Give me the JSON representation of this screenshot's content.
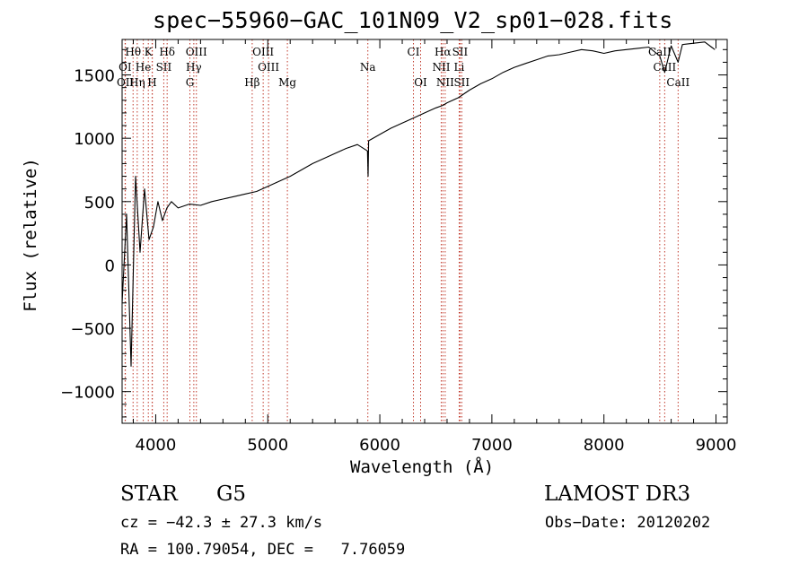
{
  "chart_data": {
    "type": "line",
    "title": "spec−55960−GAC_101N09_V2_sp01−028.fits",
    "xlabel": "Wavelength (Å)",
    "ylabel": "Flux (relative)",
    "xlim": [
      3700,
      9100
    ],
    "ylim": [
      -1250,
      1780
    ],
    "xticks": [
      4000,
      5000,
      6000,
      7000,
      8000,
      9000
    ],
    "xtick_labels": [
      "4000",
      "5000",
      "6000",
      "7000",
      "8000",
      "9000"
    ],
    "yticks": [
      -1000,
      -500,
      0,
      500,
      1000,
      1500
    ],
    "ytick_labels": [
      "−1000",
      "−500",
      "0",
      "500",
      "1000",
      "1500"
    ],
    "grid": false,
    "series": [
      {
        "name": "flux",
        "x": [
          3700,
          3740,
          3780,
          3820,
          3860,
          3900,
          3940,
          3980,
          4020,
          4060,
          4100,
          4140,
          4200,
          4300,
          4400,
          4500,
          4600,
          4700,
          4800,
          4900,
          5000,
          5100,
          5200,
          5300,
          5400,
          5500,
          5600,
          5700,
          5800,
          5890,
          5895,
          5900,
          6000,
          6100,
          6200,
          6300,
          6400,
          6500,
          6563,
          6600,
          6700,
          6800,
          6900,
          7000,
          7100,
          7200,
          7300,
          7400,
          7500,
          7600,
          7700,
          7800,
          7900,
          8000,
          8100,
          8200,
          8300,
          8400,
          8498,
          8542,
          8600,
          8662,
          8700,
          8800,
          8900,
          8960,
          8990
        ],
        "y": [
          -300,
          400,
          -800,
          700,
          100,
          600,
          200,
          300,
          500,
          350,
          450,
          500,
          450,
          480,
          470,
          500,
          520,
          540,
          560,
          580,
          620,
          660,
          700,
          750,
          800,
          840,
          880,
          920,
          950,
          900,
          700,
          980,
          1030,
          1080,
          1120,
          1160,
          1200,
          1240,
          1260,
          1280,
          1320,
          1380,
          1430,
          1470,
          1520,
          1560,
          1590,
          1620,
          1650,
          1660,
          1680,
          1700,
          1690,
          1670,
          1690,
          1700,
          1710,
          1720,
          1650,
          1520,
          1730,
          1600,
          1740,
          1750,
          1760,
          1720,
          1700
        ]
      }
    ],
    "line_annotations": [
      {
        "label": "Hθ",
        "wavelength": 3798,
        "row": 1
      },
      {
        "label": "K",
        "wavelength": 3934,
        "row": 1
      },
      {
        "label": "Hδ",
        "wavelength": 4102,
        "row": 1
      },
      {
        "label": "OIII",
        "wavelength": 4363,
        "row": 1
      },
      {
        "label": "OIII",
        "wavelength": 4959,
        "row": 1
      },
      {
        "label": "CI",
        "wavelength": 6300,
        "row": 1
      },
      {
        "label": "Hα",
        "wavelength": 6563,
        "row": 1
      },
      {
        "label": "SII",
        "wavelength": 6716,
        "row": 1
      },
      {
        "label": "CaII",
        "wavelength": 8498,
        "row": 1
      },
      {
        "label": "OI",
        "wavelength": 3727,
        "row": 2
      },
      {
        "label": "He",
        "wavelength": 3889,
        "row": 2
      },
      {
        "label": "SII",
        "wavelength": 4072,
        "row": 2
      },
      {
        "label": "Hγ",
        "wavelength": 4340,
        "row": 2
      },
      {
        "label": "OIII",
        "wavelength": 5007,
        "row": 2
      },
      {
        "label": "Na",
        "wavelength": 5893,
        "row": 2
      },
      {
        "label": "NII",
        "wavelength": 6548,
        "row": 2
      },
      {
        "label": "Li",
        "wavelength": 6708,
        "row": 2
      },
      {
        "label": "CaII",
        "wavelength": 8542,
        "row": 2
      },
      {
        "label": "OII",
        "wavelength": 3729,
        "row": 3
      },
      {
        "label": "Hη",
        "wavelength": 3835,
        "row": 3
      },
      {
        "label": "H",
        "wavelength": 3968,
        "row": 3
      },
      {
        "label": "G",
        "wavelength": 4305,
        "row": 3
      },
      {
        "label": "Hβ",
        "wavelength": 4861,
        "row": 3
      },
      {
        "label": "Mg",
        "wavelength": 5175,
        "row": 3
      },
      {
        "label": "OI",
        "wavelength": 6364,
        "row": 3
      },
      {
        "label": "NII",
        "wavelength": 6583,
        "row": 3
      },
      {
        "label": "SII",
        "wavelength": 6731,
        "row": 3
      },
      {
        "label": "CaII",
        "wavelength": 8662,
        "row": 3
      }
    ],
    "marker_lines_extra": [
      3889,
      3934,
      3970,
      4072,
      4102,
      4305,
      4340,
      4363,
      4861,
      4959,
      5007,
      5175,
      5893,
      6300,
      6364,
      6548,
      6563,
      6583,
      6708,
      6716,
      6731,
      8498,
      8542,
      8662
    ]
  },
  "info": {
    "class_label": "STAR",
    "subclass_label": "G5",
    "survey_label": "LAMOST DR3",
    "redshift_line": "cz = −42.3 ± 27.3 km/s",
    "obs_date_line": "Obs−Date: 20120202",
    "coords_line": "RA = 100.79054, DEC =   7.76059"
  },
  "colors": {
    "spectrum": "#000000",
    "marker_lines": "#c0392b",
    "axes": "#000000",
    "background": "#ffffff"
  }
}
